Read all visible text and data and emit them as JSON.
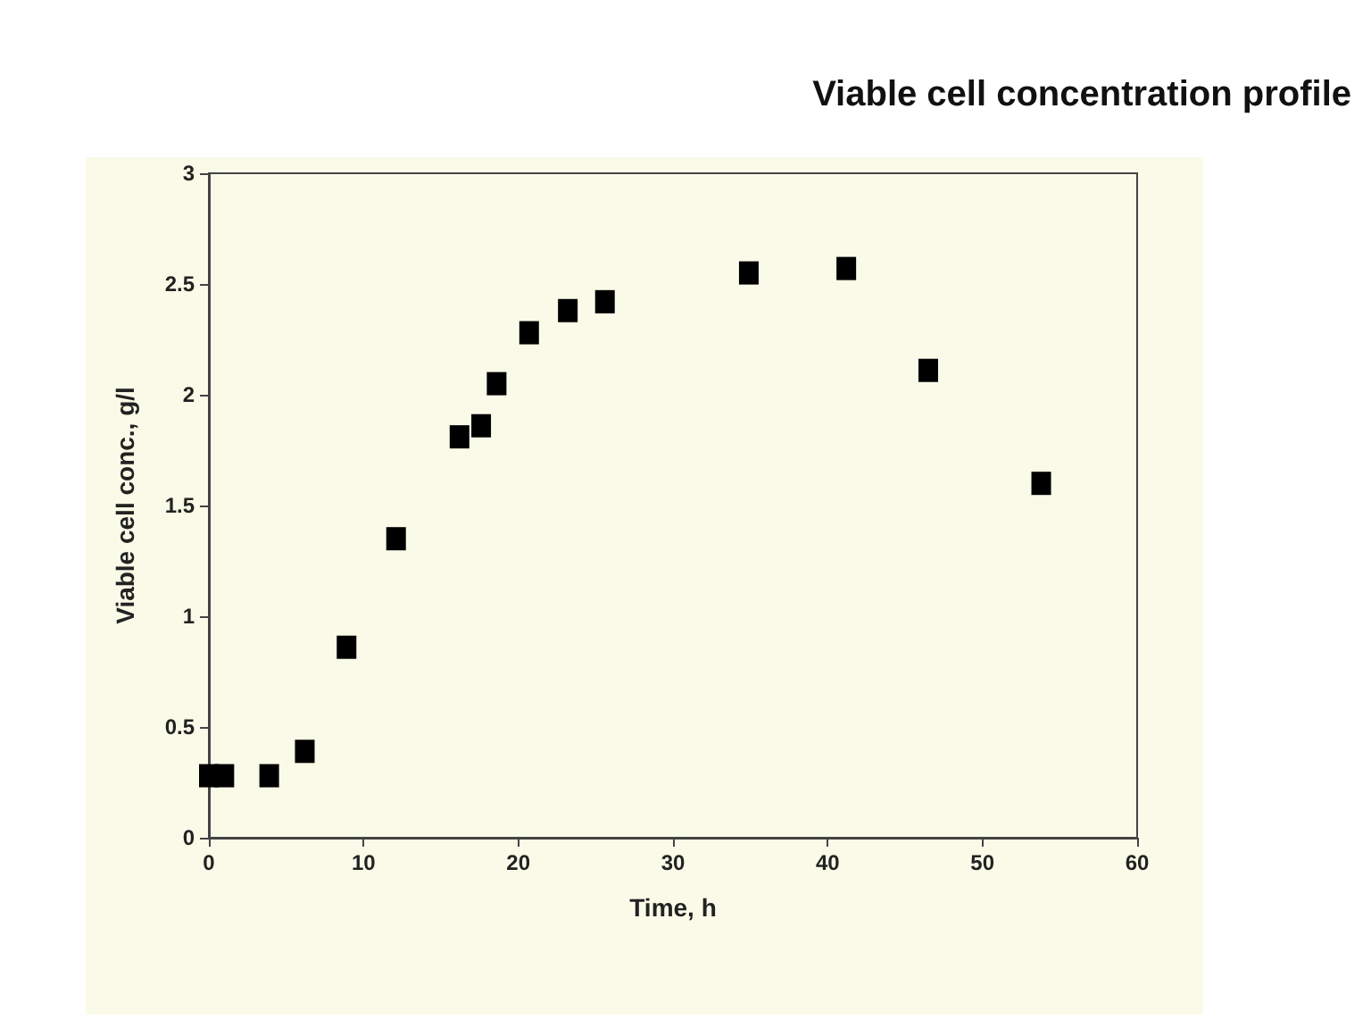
{
  "chart_data": {
    "type": "scatter",
    "title": "Viable cell concentration profile",
    "xlabel": "Time, h",
    "ylabel": "Viable cell conc., g/l",
    "x": [
      0,
      1,
      3.9,
      6.2,
      8.9,
      12.1,
      16.2,
      17.6,
      18.6,
      20.7,
      23.2,
      25.6,
      34.9,
      41.2,
      46.5,
      53.8
    ],
    "series": [
      {
        "color": "#000000",
        "values": [
          0.28,
          0.28,
          0.28,
          0.39,
          0.86,
          1.35,
          1.81,
          1.86,
          2.05,
          2.28,
          2.38,
          2.42,
          2.55,
          2.57,
          2.11,
          1.6
        ]
      }
    ],
    "xlim": [
      0,
      60
    ],
    "xticks": [
      0,
      10,
      20,
      30,
      40,
      50,
      60
    ],
    "ylim": [
      0,
      3
    ],
    "yticks": [
      0,
      0.5,
      1,
      1.5,
      2,
      2.5,
      3
    ],
    "marker": "square",
    "grid": false
  }
}
